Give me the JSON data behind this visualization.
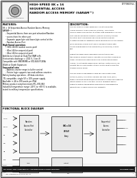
{
  "title_line1": "HIGH-SPEED 8K x 16",
  "title_line2": "SEQUENTIAL ACCESS",
  "title_line3": "RANDOM ACCESS MEMORY (SARAM™)",
  "part_number_top": "IDT70825S/L",
  "features_title": "FEATURES:",
  "features": [
    "8K × 16 Sequential Access Random Access Memory",
    "(SARAM™)",
    "  Sequential Access from one port w/random/Random",
    "  access from the other port",
    "  Separate upper-byte and lower-byte control at the",
    "  Random Access Port",
    "High-Speed operation:",
    "  35ns (44 for random access port)",
    "  40ns (44 for sequential port)",
    "  45ns (44 for sequential port)",
    "Architecture based on Dual-Port RAM cells",
    "Electrostatic discharge > 2001 V, Class III",
    "Compatible with VME/MVME or STD-BUS PCI/ISA",
    "Width or Depth Expansion",
    "Sequential sets:",
    "  Address-counter maps to buffer control",
    "  Pointer logic supports two read-address counters",
    "Battery backup operation - 4V data retention",
    "TTL compatible, single 5V ± 10% power supply",
    "Available in 44 to 100 words-per-PGA",
    "Military product compliant meets MIL-STD-883",
    "Industrial temperature range (-40°C to +85°C) is available,",
    "tested to military temperature specifications"
  ],
  "description_title": "DESCRIPTION:",
  "desc_lines": [
    "The IDT70825 is a high-speed 8K x 16-bit Sequential",
    "Access Random Access Memory (SARAM). The SARAM",
    "offers a single chip solution to buffer data sequentially on one",
    "port, and be accessed randomly (asynchronously) through",
    "the other port. This device has a Dual-Port RAM based",
    "architecture with an additional SRAM precedence for the random",
    "(asynchronous) access port, and a clocked interface with",
    "double sequencing for the sequential (synchronous) access",
    "port.",
    "",
    "Fabricated using CMOS high-performance technology,",
    "this memory device typically operates on less than 900mW of",
    "power at maximum high-speed clock-loaded and Random",
    "Access. An automatic power down feature, controlled by /CE,",
    "permits the on-chip circuitry at each port in what is also the",
    "Standby power mode.",
    "",
    "The IDT70825 is packaged in solid pin Thin Plastic Quad",
    "Flatpack (TQFP), or Military Ceramic Pin Grid Array (PGA).",
    "Military products produced/manufactured in compliance with the",
    "latest revision of MIL-STD-883, Class B, making it ideally",
    "suited to military temperature applications demanding the",
    "highest level of performance and reliability."
  ],
  "block_title": "FUNCTIONAL BLOCK DIAGRAM",
  "footer_left": "MILITARY AND COMMERCIAL TEMPERATURE RANGE DESIGNS",
  "footer_right": "OCTOBER 1996",
  "footer_copy": "© 1996 Integrated Device Technology Inc.",
  "footer_note": "2-21",
  "footer_page": "1",
  "bg_color": "#ffffff",
  "border_color": "#000000",
  "text_color": "#000000"
}
